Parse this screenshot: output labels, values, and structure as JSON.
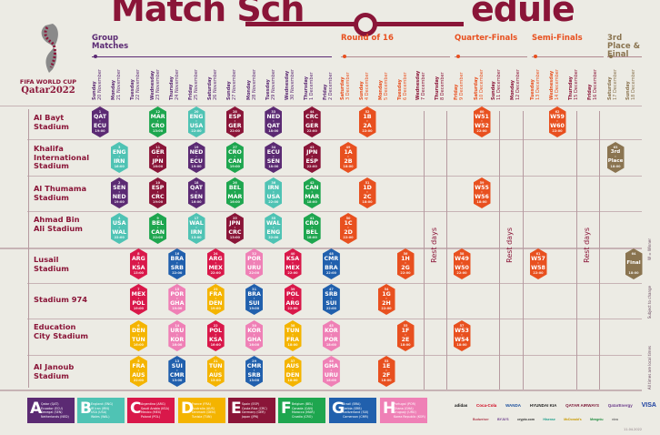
{
  "title": {
    "left": "Match Sch",
    "right": "edule"
  },
  "logo": {
    "line1": "FIFA WORLD CUP",
    "line2": "Qatar2022"
  },
  "colors": {
    "maroon": "#8a1538",
    "knockout": "#e8501f",
    "final": "#8a7450",
    "purple": "#5b2a73"
  },
  "sections": [
    {
      "label": "Group Matches",
      "color": "#5b2a73"
    },
    {
      "label": "Round of 16",
      "color": "#e8501f"
    },
    {
      "label": "Quarter-Finals",
      "color": "#e8501f"
    },
    {
      "label": "Semi-Finals",
      "color": "#e8501f"
    },
    {
      "label": "3rd Place & Final",
      "color": "#8a7450"
    }
  ],
  "dates": [
    {
      "day": "Sunday",
      "date": "20 November"
    },
    {
      "day": "Monday",
      "date": "21 November"
    },
    {
      "day": "Tuesday",
      "date": "22 November"
    },
    {
      "day": "Wednesday",
      "date": "23 November"
    },
    {
      "day": "Thursday",
      "date": "24 November"
    },
    {
      "day": "Friday",
      "date": "25 November"
    },
    {
      "day": "Saturday",
      "date": "26 November"
    },
    {
      "day": "Sunday",
      "date": "27 November"
    },
    {
      "day": "Monday",
      "date": "28 November"
    },
    {
      "day": "Tuesday",
      "date": "29 November"
    },
    {
      "day": "Wednesday",
      "date": "30 November"
    },
    {
      "day": "Thursday",
      "date": "1 December"
    },
    {
      "day": "Friday",
      "date": "2 December"
    },
    {
      "day": "Saturday",
      "date": "3 December"
    },
    {
      "day": "Sunday",
      "date": "4 December"
    },
    {
      "day": "Monday",
      "date": "5 December"
    },
    {
      "day": "Tuesday",
      "date": "6 December"
    },
    {
      "day": "Wednesday",
      "date": "7 December"
    },
    {
      "day": "Thursday",
      "date": "8 December"
    },
    {
      "day": "Friday",
      "date": "9 December"
    },
    {
      "day": "Saturday",
      "date": "10 December"
    },
    {
      "day": "Sunday",
      "date": "11 December"
    },
    {
      "day": "Monday",
      "date": "12 December"
    },
    {
      "day": "Tuesday",
      "date": "13 December"
    },
    {
      "day": "Wednesday",
      "date": "14 December"
    },
    {
      "day": "Thursday",
      "date": "15 December"
    },
    {
      "day": "Friday",
      "date": "16 December"
    },
    {
      "day": "Saturday",
      "date": "17 December"
    },
    {
      "day": "Sunday",
      "date": "18 December"
    }
  ],
  "rest_label": "Rest days",
  "groups": [
    {
      "letter": "A",
      "color": "#5b2a73",
      "teams": [
        "Qatar (QAT)",
        "Ecuador (ECU)",
        "Senegal (SEN)",
        "Netherlands (NED)"
      ],
      "codes": [
        "QAT",
        "ECU",
        "SEN",
        "NED"
      ]
    },
    {
      "letter": "B",
      "color": "#4fc3b4",
      "teams": [
        "England (ENG)",
        "IR Iran (IRN)",
        "USA (USA)",
        "Wales (WAL)"
      ],
      "codes": [
        "ENG",
        "IRN",
        "USA",
        "WAL"
      ]
    },
    {
      "letter": "C",
      "color": "#d9184a",
      "teams": [
        "Argentina (ARG)",
        "Saudi Arabia (KSA)",
        "Mexico (MEX)",
        "Poland (POL)"
      ],
      "codes": [
        "ARG",
        "KSA",
        "MEX",
        "POL"
      ]
    },
    {
      "letter": "D",
      "color": "#f4b400",
      "teams": [
        "France (FRA)",
        "Australia (AUS)",
        "Denmark (DEN)",
        "Tunisia (TUN)"
      ],
      "codes": [
        "FRA",
        "AUS",
        "DEN",
        "TUN"
      ]
    },
    {
      "letter": "E",
      "color": "#8a1538",
      "teams": [
        "Spain (ESP)",
        "Costa Rica (CRC)",
        "Germany (GER)",
        "Japan (JPN)"
      ],
      "codes": [
        "ESP",
        "CRC",
        "GER",
        "JPN"
      ]
    },
    {
      "letter": "F",
      "color": "#1ea64f",
      "teams": [
        "Belgium (BEL)",
        "Canada (CAN)",
        "Morocco (MAR)",
        "Croatia (CRO)"
      ],
      "codes": [
        "BEL",
        "CAN",
        "MAR",
        "CRO"
      ]
    },
    {
      "letter": "G",
      "color": "#2160ad",
      "teams": [
        "Brazil (BRA)",
        "Serbia (SRB)",
        "Switzerland (SUI)",
        "Cameroon (CMR)"
      ],
      "codes": [
        "BRA",
        "SRB",
        "SUI",
        "CMR"
      ]
    },
    {
      "letter": "H",
      "color": "#ef80b6",
      "teams": [
        "Portugal (POR)",
        "Ghana (GHA)",
        "Uruguay (URU)",
        "Korea Republic (KOR)"
      ],
      "codes": [
        "POR",
        "GHA",
        "URU",
        "KOR"
      ]
    }
  ],
  "venues": [
    {
      "name": "Al Bayt Stadium",
      "matches": [
        {
          "n": "1",
          "home": "QAT",
          "away": "ECU",
          "time": "19:00",
          "date": "20 November"
        },
        {
          "n": "12",
          "home": "MAR",
          "away": "CRO",
          "time": "13:00",
          "date": "23 November"
        },
        {
          "n": "20",
          "home": "ENG",
          "away": "USA",
          "time": "22:00",
          "date": "25 November"
        },
        {
          "n": "28",
          "home": "ESP",
          "away": "GER",
          "time": "22:00",
          "date": "27 November"
        },
        {
          "n": "33",
          "home": "NED",
          "away": "QAT",
          "time": "18:00",
          "date": "29 November"
        },
        {
          "n": "44",
          "home": "CRC",
          "away": "GER",
          "time": "22:00",
          "date": "1 December"
        },
        {
          "n": "52",
          "home": "1B",
          "away": "2A",
          "time": "22:00",
          "date": "4 December",
          "stage": "knockout"
        },
        {
          "n": "60",
          "home": "W51",
          "away": "W52",
          "time": "22:00",
          "date": "10 December",
          "stage": "knockout"
        },
        {
          "n": "62",
          "home": "W59",
          "away": "W60",
          "time": "22:00",
          "date": "14 December",
          "stage": "knockout"
        }
      ]
    },
    {
      "name": "Khalifa International Stadium",
      "matches": [
        {
          "n": "3",
          "home": "ENG",
          "away": "IRN",
          "time": "16:00",
          "date": "21 November"
        },
        {
          "n": "11",
          "home": "GER",
          "away": "JPN",
          "time": "16:00",
          "date": "23 November"
        },
        {
          "n": "19",
          "home": "NED",
          "away": "ECU",
          "time": "19:00",
          "date": "25 November"
        },
        {
          "n": "27",
          "home": "CRO",
          "away": "CAN",
          "time": "19:00",
          "date": "27 November"
        },
        {
          "n": "34",
          "home": "ECU",
          "away": "SEN",
          "time": "18:00",
          "date": "29 November"
        },
        {
          "n": "43",
          "home": "JPN",
          "away": "ESP",
          "time": "22:00",
          "date": "1 December"
        },
        {
          "n": "49",
          "home": "1A",
          "away": "2B",
          "time": "18:00",
          "date": "3 December",
          "stage": "knockout"
        },
        {
          "n": "63",
          "home": "3rd",
          "away": "Place",
          "time": "18:00",
          "date": "17 December",
          "stage": "final"
        }
      ]
    },
    {
      "name": "Al Thumama Stadium",
      "matches": [
        {
          "n": "2",
          "home": "SEN",
          "away": "NED",
          "time": "19:00",
          "date": "21 November"
        },
        {
          "n": "10",
          "home": "ESP",
          "away": "CRC",
          "time": "19:00",
          "date": "23 November"
        },
        {
          "n": "18",
          "home": "QAT",
          "away": "SEN",
          "time": "16:00",
          "date": "25 November"
        },
        {
          "n": "26",
          "home": "BEL",
          "away": "MAR",
          "time": "16:00",
          "date": "27 November"
        },
        {
          "n": "36",
          "home": "IRN",
          "away": "USA",
          "time": "22:00",
          "date": "29 November"
        },
        {
          "n": "42",
          "home": "CAN",
          "away": "MAR",
          "time": "18:00",
          "date": "1 December"
        },
        {
          "n": "51",
          "home": "1D",
          "away": "2C",
          "time": "18:00",
          "date": "4 December",
          "stage": "knockout"
        },
        {
          "n": "59",
          "home": "W55",
          "away": "W56",
          "time": "18:00",
          "date": "10 December",
          "stage": "knockout"
        }
      ]
    },
    {
      "name": "Ahmad Bin Ali Stadium",
      "matches": [
        {
          "n": "4",
          "home": "USA",
          "away": "WAL",
          "time": "22:00",
          "date": "21 November"
        },
        {
          "n": "9",
          "home": "BEL",
          "away": "CAN",
          "time": "22:00",
          "date": "23 November"
        },
        {
          "n": "17",
          "home": "WAL",
          "away": "IRN",
          "time": "13:00",
          "date": "25 November"
        },
        {
          "n": "25",
          "home": "JPN",
          "away": "CRC",
          "time": "13:00",
          "date": "27 November"
        },
        {
          "n": "35",
          "home": "WAL",
          "away": "ENG",
          "time": "22:00",
          "date": "29 November"
        },
        {
          "n": "41",
          "home": "CRO",
          "away": "BEL",
          "time": "18:00",
          "date": "1 December"
        },
        {
          "n": "50",
          "home": "1C",
          "away": "2D",
          "time": "22:00",
          "date": "3 December",
          "stage": "knockout"
        }
      ]
    },
    {
      "name": "Lusail Stadium",
      "matches": [
        {
          "n": "8",
          "home": "ARG",
          "away": "KSA",
          "time": "13:00",
          "date": "22 November"
        },
        {
          "n": "16",
          "home": "BRA",
          "away": "SRB",
          "time": "22:00",
          "date": "24 November"
        },
        {
          "n": "24",
          "home": "ARG",
          "away": "MEX",
          "time": "22:00",
          "date": "26 November"
        },
        {
          "n": "32",
          "home": "POR",
          "away": "URU",
          "time": "22:00",
          "date": "28 November"
        },
        {
          "n": "40",
          "home": "KSA",
          "away": "MEX",
          "time": "22:00",
          "date": "30 November"
        },
        {
          "n": "48",
          "home": "CMR",
          "away": "BRA",
          "time": "22:00",
          "date": "2 December"
        },
        {
          "n": "56",
          "home": "1H",
          "away": "2G",
          "time": "22:00",
          "date": "6 December",
          "stage": "knockout"
        },
        {
          "n": "58",
          "home": "W49",
          "away": "W50",
          "time": "22:00",
          "date": "9 December",
          "stage": "knockout"
        },
        {
          "n": "61",
          "home": "W57",
          "away": "W58",
          "time": "22:00",
          "date": "13 December",
          "stage": "knockout"
        },
        {
          "n": "64",
          "home": "Final",
          "away": "",
          "time": "18:00",
          "date": "18 December",
          "stage": "final"
        }
      ]
    },
    {
      "name": "Stadium 974",
      "matches": [
        {
          "n": "7",
          "home": "MEX",
          "away": "POL",
          "time": "19:00",
          "date": "22 November"
        },
        {
          "n": "15",
          "home": "POR",
          "away": "GHA",
          "time": "19:00",
          "date": "24 November"
        },
        {
          "n": "23",
          "home": "FRA",
          "away": "DEN",
          "time": "19:00",
          "date": "26 November"
        },
        {
          "n": "31",
          "home": "BRA",
          "away": "SUI",
          "time": "19:00",
          "date": "28 November"
        },
        {
          "n": "39",
          "home": "POL",
          "away": "ARG",
          "time": "22:00",
          "date": "30 November"
        },
        {
          "n": "47",
          "home": "SRB",
          "away": "SUI",
          "time": "22:00",
          "date": "2 December"
        },
        {
          "n": "54",
          "home": "1G",
          "away": "2H",
          "time": "22:00",
          "date": "5 December",
          "stage": "knockout"
        }
      ]
    },
    {
      "name": "Education City Stadium",
      "matches": [
        {
          "n": "6",
          "home": "DEN",
          "away": "TUN",
          "time": "16:00",
          "date": "22 November"
        },
        {
          "n": "14",
          "home": "URU",
          "away": "KOR",
          "time": "16:00",
          "date": "24 November"
        },
        {
          "n": "22",
          "home": "POL",
          "away": "KSA",
          "time": "16:00",
          "date": "26 November"
        },
        {
          "n": "30",
          "home": "KOR",
          "away": "GHA",
          "time": "16:00",
          "date": "28 November"
        },
        {
          "n": "38",
          "home": "TUN",
          "away": "FRA",
          "time": "18:00",
          "date": "30 November"
        },
        {
          "n": "45",
          "home": "KOR",
          "away": "POR",
          "time": "18:00",
          "date": "2 December"
        },
        {
          "n": "55",
          "home": "1F",
          "away": "2E",
          "time": "18:00",
          "date": "6 December",
          "stage": "knockout"
        },
        {
          "n": "57",
          "home": "W53",
          "away": "W54",
          "time": "18:00",
          "date": "9 December",
          "stage": "knockout"
        }
      ]
    },
    {
      "name": "Al Janoub Stadium",
      "matches": [
        {
          "n": "5",
          "home": "FRA",
          "away": "AUS",
          "time": "22:00",
          "date": "22 November"
        },
        {
          "n": "13",
          "home": "SUI",
          "away": "CMR",
          "time": "13:00",
          "date": "24 November"
        },
        {
          "n": "21",
          "home": "TUN",
          "away": "AUS",
          "time": "13:00",
          "date": "26 November"
        },
        {
          "n": "29",
          "home": "CMR",
          "away": "SRB",
          "time": "13:00",
          "date": "28 November"
        },
        {
          "n": "37",
          "home": "AUS",
          "away": "DEN",
          "time": "18:00",
          "date": "30 November"
        },
        {
          "n": "46",
          "home": "GHA",
          "away": "URU",
          "time": "18:00",
          "date": "2 December"
        },
        {
          "n": "53",
          "home": "1E",
          "away": "2F",
          "time": "18:00",
          "date": "5 December",
          "stage": "knockout"
        }
      ]
    }
  ],
  "side_notes": [
    "W = Winner",
    "Subject to change",
    "All times are local times"
  ],
  "sponsors": {
    "row1": [
      "adidas",
      "Coca-Cola",
      "WANDA",
      "HYUNDAI KIA",
      "QATAR AIRWAYS",
      "QatarEnergy",
      "VISA"
    ],
    "row2": [
      "Budweiser",
      "BYJU'S",
      "crypto.com",
      "Hisense",
      "McDonald's",
      "Mengniu",
      "vivo"
    ]
  },
  "footer_date": "11.04.2022"
}
